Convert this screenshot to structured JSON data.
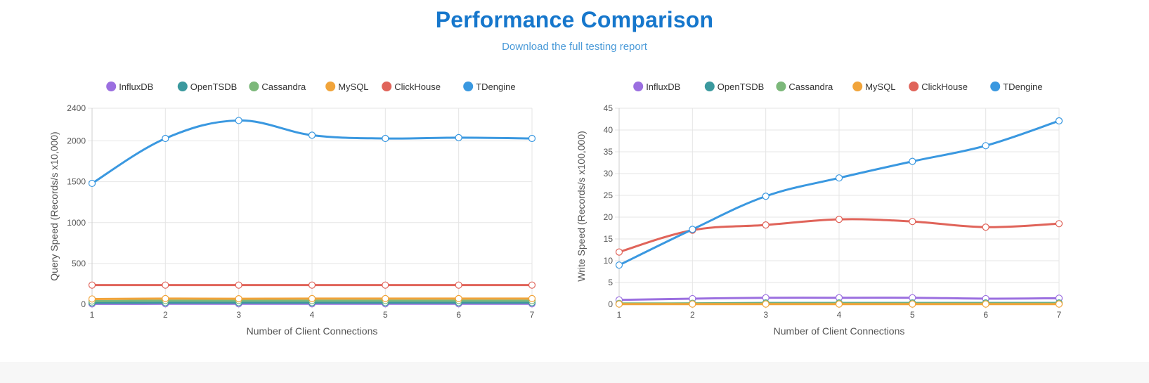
{
  "header": {
    "title": "Performance Comparison",
    "subtitle_link": "Download the full testing report"
  },
  "colors": {
    "title": "#1677cc",
    "link": "#4a9ad8",
    "InfluxDB": "#9b6fe0",
    "OpenTSDB": "#3b999e",
    "Cassandra": "#7cb87a",
    "MySQL": "#f1a43a",
    "ClickHouse": "#e0645a",
    "TDengine": "#3a98e0"
  },
  "chart_data": [
    {
      "type": "line",
      "x": [
        1,
        2,
        3,
        4,
        5,
        6,
        7
      ],
      "xlabel": "Number of Client Connections",
      "ylabel": "Query Speed (Records/s x10,000)",
      "ylim": [
        0,
        2400
      ],
      "yticks": [
        0,
        500,
        1000,
        1500,
        2000,
        2400
      ],
      "grid": true,
      "legend": "top-center",
      "series": [
        {
          "name": "InfluxDB",
          "values": [
            5,
            6,
            6,
            6,
            6,
            6,
            6
          ]
        },
        {
          "name": "OpenTSDB",
          "values": [
            18,
            20,
            20,
            20,
            20,
            20,
            20
          ]
        },
        {
          "name": "Cassandra",
          "values": [
            40,
            45,
            45,
            45,
            45,
            45,
            45
          ]
        },
        {
          "name": "MySQL",
          "values": [
            65,
            70,
            68,
            70,
            70,
            70,
            70
          ]
        },
        {
          "name": "ClickHouse",
          "values": [
            235,
            235,
            235,
            235,
            235,
            235,
            235
          ]
        },
        {
          "name": "TDengine",
          "values": [
            1480,
            2030,
            2250,
            2070,
            2030,
            2040,
            2030
          ]
        }
      ]
    },
    {
      "type": "line",
      "x": [
        1,
        2,
        3,
        4,
        5,
        6,
        7
      ],
      "xlabel": "Number of Client Connections",
      "ylabel": "Write Speed (Records/s x100,000)",
      "ylim": [
        0,
        45
      ],
      "yticks": [
        0,
        5,
        10,
        15,
        20,
        25,
        30,
        35,
        40,
        45
      ],
      "grid": true,
      "legend": "top-center",
      "series": [
        {
          "name": "InfluxDB",
          "values": [
            1.0,
            1.3,
            1.5,
            1.5,
            1.5,
            1.3,
            1.4
          ]
        },
        {
          "name": "OpenTSDB",
          "values": [
            0.1,
            0.2,
            0.3,
            0.3,
            0.3,
            0.3,
            0.3
          ]
        },
        {
          "name": "Cassandra",
          "values": [
            0.2,
            0.2,
            0.2,
            0.2,
            0.2,
            0.2,
            0.2
          ]
        },
        {
          "name": "MySQL",
          "values": [
            0.05,
            0.05,
            0.05,
            0.05,
            0.05,
            0.05,
            0.05
          ]
        },
        {
          "name": "ClickHouse",
          "values": [
            12.0,
            17.0,
            18.2,
            19.5,
            19.0,
            17.7,
            18.5
          ]
        },
        {
          "name": "TDengine",
          "values": [
            9.0,
            17.2,
            24.8,
            29.0,
            32.8,
            36.4,
            42.1
          ]
        }
      ]
    }
  ]
}
